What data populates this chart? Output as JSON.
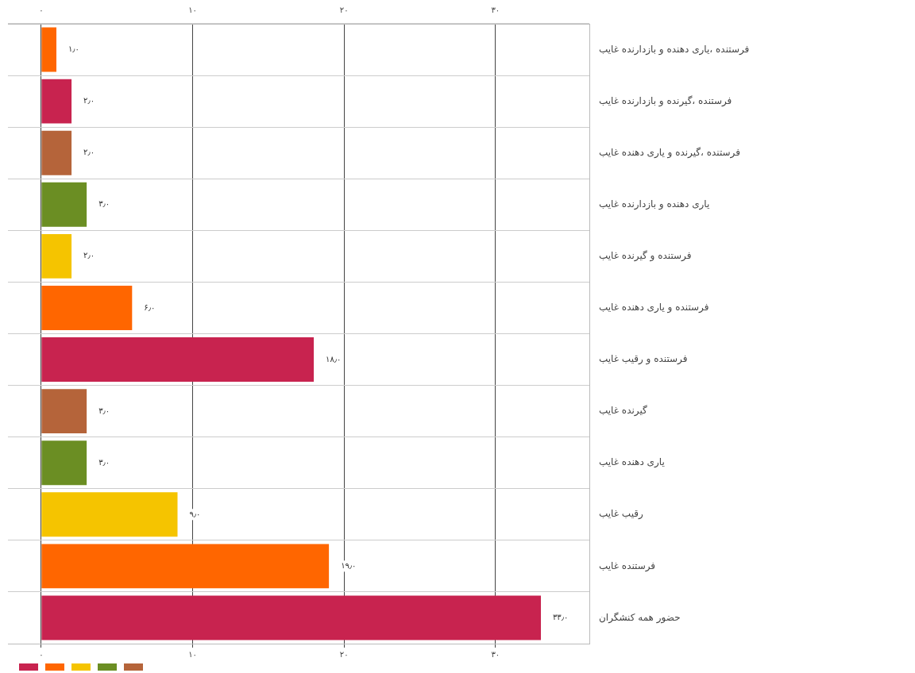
{
  "chart_data": {
    "type": "bar",
    "orientation": "horizontal",
    "categories": [
      "فرستنده ،یاری دهنده و بازدارنده غایب",
      "فرستنده ،گیرنده و بازدارنده غایب",
      "فرستنده ،گیرنده و یاری دهنده غایب",
      "یاری دهنده و بازدارنده غایب",
      "فرستنده و گیرنده غایب",
      "فرستنده و یاری دهنده غایب",
      "فرستنده و رقیب غایب",
      "گیرنده غایب",
      "یاری دهنده غایب",
      "رقیب غایب",
      "فرستنده غایب",
      "حضور همه کنشگران"
    ],
    "values": [
      1,
      2,
      2,
      3,
      2,
      6,
      18,
      3,
      3,
      9,
      19,
      33
    ],
    "value_labels": [
      "۱٫۰",
      "۲٫۰",
      "۲٫۰",
      "۳٫۰",
      "۲٫۰",
      "۶٫۰",
      "۱۸٫۰",
      "۳٫۰",
      "۳٫۰",
      "۹٫۰",
      "۱۹٫۰",
      "۳۳٫۰"
    ],
    "colors": [
      "#ff6600",
      "#c8234f",
      "#b5643a",
      "#6b8e23",
      "#f5c400",
      "#ff6600",
      "#c8234f",
      "#b5643a",
      "#6b8e23",
      "#f5c400",
      "#ff6600",
      "#c8234f"
    ],
    "xlim": [
      -2.2,
      36.2
    ],
    "xticks": [
      {
        "value": 0,
        "label": "۰"
      },
      {
        "value": 10,
        "label": "۱۰"
      },
      {
        "value": 20,
        "label": "۲۰"
      },
      {
        "value": 30,
        "label": "۳۰"
      }
    ],
    "x2lim": [
      -2.2,
      36.2
    ],
    "x2ticks": [
      {
        "value": 0,
        "label": "۰"
      },
      {
        "value": 10,
        "label": "۱۰"
      },
      {
        "value": 20,
        "label": "۲۰"
      },
      {
        "value": 30,
        "label": "۳۰"
      }
    ],
    "grid": true
  }
}
